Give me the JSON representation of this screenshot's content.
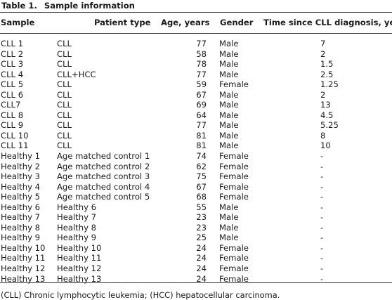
{
  "caption": {
    "number": "Table 1.",
    "title": "Sample information"
  },
  "headers": {
    "sample": "Sample",
    "patient_type": "Patient type",
    "age": "Age, years",
    "gender": "Gender",
    "time": "Time since CLL diagnosis, years"
  },
  "rows": [
    {
      "sample": "CLL 1",
      "patient_type": "CLL",
      "age": "77",
      "gender": "Male",
      "time": "7"
    },
    {
      "sample": "CLL 2",
      "patient_type": "CLL",
      "age": "58",
      "gender": "Male",
      "time": "2"
    },
    {
      "sample": "CLL 3",
      "patient_type": "CLL",
      "age": "78",
      "gender": "Male",
      "time": "1.5"
    },
    {
      "sample": "CLL 4",
      "patient_type": "CLL+HCC",
      "age": "77",
      "gender": "Male",
      "time": "2.5"
    },
    {
      "sample": "CLL 5",
      "patient_type": "CLL",
      "age": "59",
      "gender": "Female",
      "time": "1.25"
    },
    {
      "sample": "CLL 6",
      "patient_type": "CLL",
      "age": "67",
      "gender": "Male",
      "time": "2"
    },
    {
      "sample": "CLL7",
      "patient_type": "CLL",
      "age": "69",
      "gender": "Male",
      "time": "13"
    },
    {
      "sample": "CLL 8",
      "patient_type": "CLL",
      "age": "64",
      "gender": "Male",
      "time": "4.5"
    },
    {
      "sample": "CLL 9",
      "patient_type": "CLL",
      "age": "77",
      "gender": "Male",
      "time": "5.25"
    },
    {
      "sample": "CLL 10",
      "patient_type": "CLL",
      "age": "81",
      "gender": "Male",
      "time": "8"
    },
    {
      "sample": "CLL 11",
      "patient_type": "CLL",
      "age": "81",
      "gender": "Male",
      "time": "10"
    },
    {
      "sample": "Healthy 1",
      "patient_type": "Age matched control 1",
      "age": "74",
      "gender": "Female",
      "time": "-"
    },
    {
      "sample": "Healthy 2",
      "patient_type": "Age matched control 2",
      "age": "62",
      "gender": "Female",
      "time": "-"
    },
    {
      "sample": "Healthy 3",
      "patient_type": "Age matched control 3",
      "age": "75",
      "gender": "Female",
      "time": "-"
    },
    {
      "sample": "Healthy 4",
      "patient_type": "Age matched control 4",
      "age": "67",
      "gender": "Female",
      "time": "-"
    },
    {
      "sample": "Healthy 5",
      "patient_type": "Age matched control 5",
      "age": "68",
      "gender": "Female",
      "time": "-"
    },
    {
      "sample": "Healthy 6",
      "patient_type": "Healthy 6",
      "age": "55",
      "gender": "Male",
      "time": "-"
    },
    {
      "sample": "Healthy 7",
      "patient_type": "Healthy 7",
      "age": "23",
      "gender": "Male",
      "time": "-"
    },
    {
      "sample": "Healthy 8",
      "patient_type": "Healthy 8",
      "age": "23",
      "gender": "Male",
      "time": "-"
    },
    {
      "sample": "Healthy 9",
      "patient_type": "Healthy 9",
      "age": "25",
      "gender": "Male",
      "time": "-"
    },
    {
      "sample": "Healthy 10",
      "patient_type": "Healthy 10",
      "age": "24",
      "gender": "Female",
      "time": "-"
    },
    {
      "sample": "Healthy 11",
      "patient_type": "Healthy 11",
      "age": "24",
      "gender": "Female",
      "time": "-"
    },
    {
      "sample": "Healthy 12",
      "patient_type": "Healthy 12",
      "age": "24",
      "gender": "Female",
      "time": "-"
    },
    {
      "sample": "Healthy 13",
      "patient_type": "Healthy 13",
      "age": "24",
      "gender": "Female",
      "time": "-"
    }
  ],
  "footnote": "(CLL) Chronic lymphocytic leukemia; (HCC) hepatocellular carcinoma."
}
